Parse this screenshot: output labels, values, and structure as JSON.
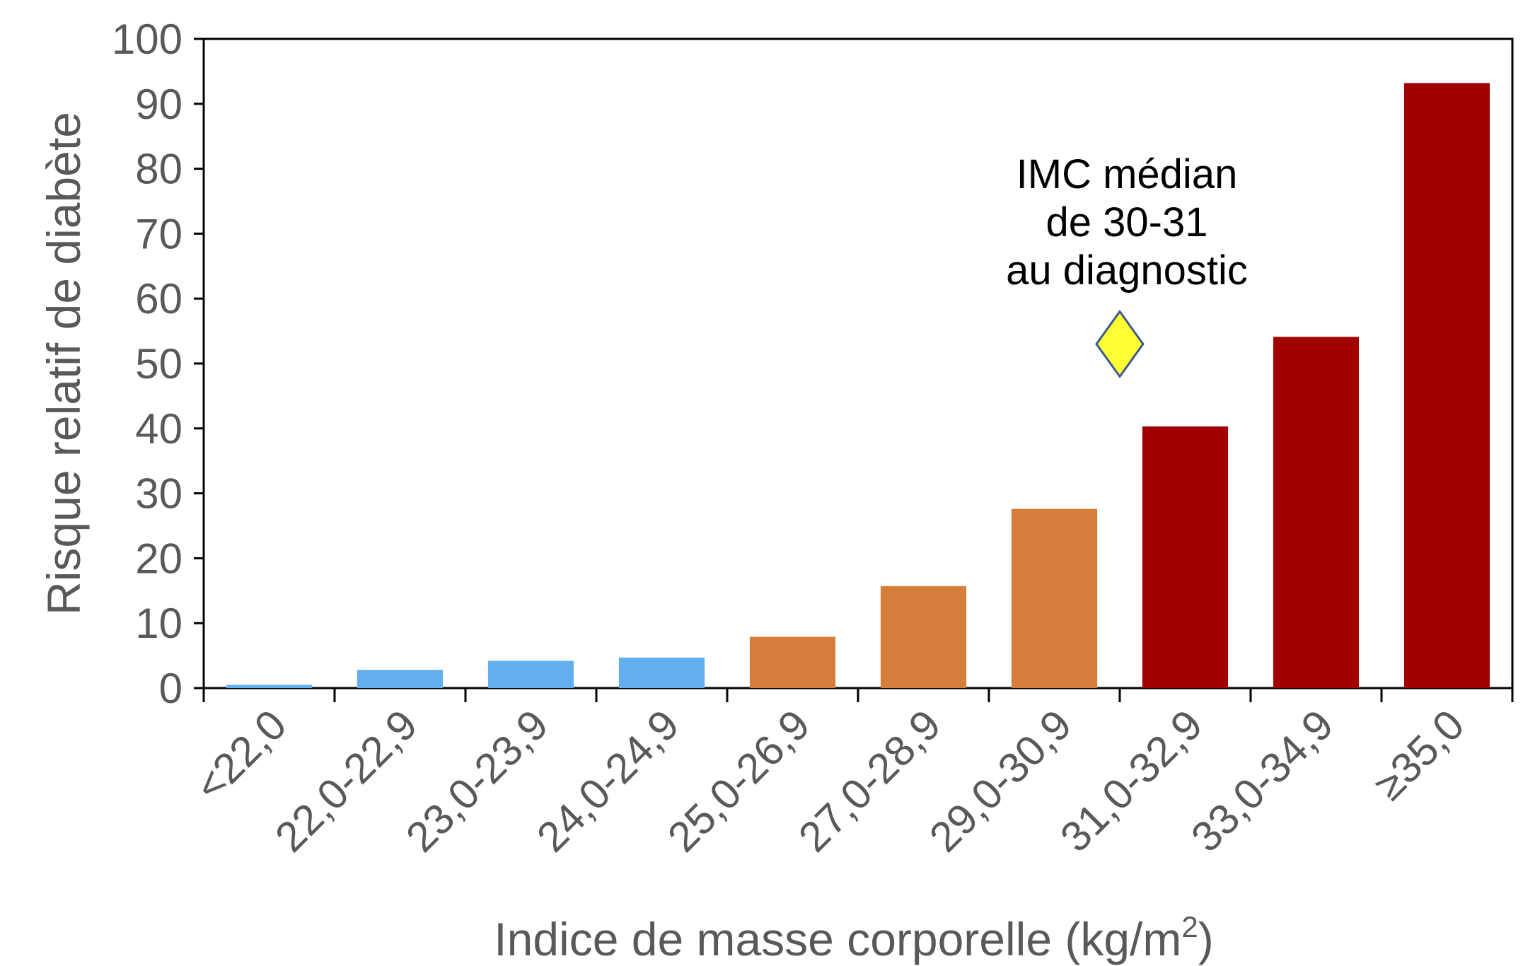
{
  "chart_data": {
    "type": "bar",
    "title": "",
    "categories": [
      "<22,0",
      "22,0-22,9",
      "23,0-23,9",
      "24,0-24,9",
      "25,0-26,9",
      "27,0-28,9",
      "29,0-30,9",
      "31,0-32,9",
      "33,0-34,9",
      "≥35,0"
    ],
    "values": [
      0.5,
      2.8,
      4.2,
      4.7,
      7.9,
      15.7,
      27.6,
      40.3,
      54.1,
      93.2
    ],
    "bar_colors": [
      "#63aeee",
      "#63aeee",
      "#63aeee",
      "#63aeee",
      "#d57e3c",
      "#d57e3c",
      "#d57e3c",
      "#a20000",
      "#a20000",
      "#a20000"
    ],
    "xlabel_main": "Indice de masse corporelle (kg/m",
    "xlabel_sup": "2",
    "xlabel_end": ")",
    "ylabel": "Risque relatif de diabète",
    "ylim": [
      0,
      100
    ],
    "yticks": [
      0,
      10,
      20,
      30,
      40,
      50,
      60,
      70,
      80,
      90,
      100
    ],
    "grid": false,
    "annotation": {
      "lines": [
        "IMC médian",
        "de 30-31",
        "au diagnostic"
      ],
      "marker": "diamond",
      "marker_x": 7,
      "marker_y": 53,
      "marker_fill": "#ffff33",
      "marker_stroke": "#3c5a8c"
    }
  }
}
